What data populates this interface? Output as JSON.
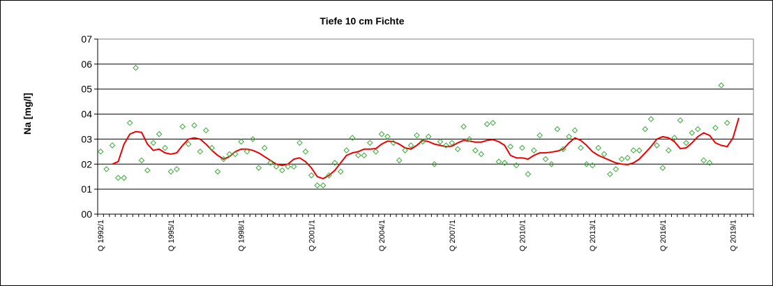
{
  "chart_data": {
    "type": "line",
    "title": "Tiefe  10 cm     Fichte",
    "ylabel": "Na [mg/l]",
    "xlabel": "",
    "y_tick_labels": [
      "00",
      "01",
      "02",
      "03",
      "04",
      "05",
      "06",
      "07"
    ],
    "ylim": [
      0,
      7
    ],
    "grid": true,
    "x_tick_labels": [
      "Q 1992/1",
      "Q 1995/1",
      "Q 1998/1",
      "Q 2001/1",
      "Q 2004/1",
      "Q 2007/1",
      "Q 2010/1",
      "Q 2013/1",
      "Q 2016/1",
      "Q 2019/1"
    ],
    "x_quarters_total": 112,
    "series": [
      {
        "kind": "scatter",
        "marker": "diamond",
        "color": "#33aa33",
        "values": [
          2.5,
          1.8,
          2.75,
          1.45,
          1.45,
          3.65,
          5.85,
          2.15,
          1.75,
          2.85,
          3.2,
          2.65,
          1.7,
          1.8,
          3.5,
          2.8,
          3.55,
          2.5,
          3.35,
          2.65,
          1.7,
          2.2,
          2.4,
          2.4,
          2.9,
          2.5,
          3.0,
          1.85,
          2.65,
          2.05,
          1.9,
          1.75,
          1.9,
          1.9,
          2.85,
          2.5,
          1.55,
          1.15,
          1.15,
          1.55,
          2.05,
          1.7,
          2.55,
          3.05,
          2.35,
          2.35,
          2.85,
          2.5,
          3.2,
          3.1,
          2.85,
          2.15,
          2.55,
          2.75,
          3.15,
          2.9,
          3.1,
          2.0,
          2.9,
          2.75,
          2.85,
          2.6,
          3.5,
          3.0,
          2.55,
          2.4,
          3.6,
          3.65,
          2.1,
          2.05,
          2.7,
          1.95,
          2.65,
          1.6,
          2.55,
          3.15,
          2.2,
          2.0,
          3.4,
          2.6,
          3.1,
          3.35,
          2.65,
          2.0,
          1.95,
          2.65,
          2.4,
          1.6,
          1.8,
          2.2,
          2.25,
          2.55,
          2.55,
          3.4,
          3.8,
          2.75,
          1.85,
          2.55,
          3.05,
          3.75,
          2.85,
          3.25,
          3.4,
          2.15,
          2.05,
          3.45,
          5.15,
          3.65
        ]
      },
      {
        "kind": "line",
        "color": "#ee0000",
        "start_index": 2,
        "values": [
          2.0,
          2.1,
          2.8,
          3.2,
          3.3,
          3.27,
          2.8,
          2.55,
          2.6,
          2.45,
          2.4,
          2.45,
          2.75,
          3.0,
          3.05,
          3.0,
          2.8,
          2.55,
          2.35,
          2.2,
          2.3,
          2.5,
          2.6,
          2.6,
          2.55,
          2.45,
          2.3,
          2.15,
          2.0,
          1.95,
          2.0,
          2.2,
          2.25,
          2.1,
          1.85,
          1.5,
          1.42,
          1.55,
          1.75,
          2.05,
          2.35,
          2.45,
          2.5,
          2.6,
          2.6,
          2.62,
          2.8,
          2.92,
          2.9,
          2.8,
          2.65,
          2.6,
          2.75,
          2.95,
          2.9,
          2.8,
          2.75,
          2.7,
          2.72,
          2.85,
          2.95,
          2.92,
          2.88,
          2.88,
          2.95,
          2.98,
          2.9,
          2.75,
          2.35,
          2.25,
          2.25,
          2.2,
          2.35,
          2.45,
          2.45,
          2.48,
          2.52,
          2.6,
          2.85,
          3.05,
          2.95,
          2.75,
          2.5,
          2.35,
          2.25,
          2.15,
          2.05,
          2.0,
          1.98,
          2.05,
          2.2,
          2.45,
          2.7,
          3.0,
          3.1,
          3.05,
          2.9,
          2.62,
          2.65,
          2.85,
          3.1,
          3.25,
          3.15,
          2.85,
          2.75,
          2.7,
          3.05,
          3.85
        ]
      }
    ]
  }
}
